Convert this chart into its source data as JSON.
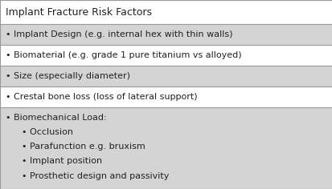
{
  "title": "Implant Fracture Risk Factors",
  "title_bg": "#ffffff",
  "border_color": "#999999",
  "text_color": "#222222",
  "title_fontsize": 9.0,
  "row_fontsize": 8.0,
  "fig_width": 4.14,
  "fig_height": 2.36,
  "dpi": 100,
  "rows": [
    {
      "text": "• Implant Design (e.g. internal hex with thin walls)",
      "bg": "#d4d4d4"
    },
    {
      "text": "• Biomaterial (e.g. grade 1 pure titanium vs alloyed)",
      "bg": "#ffffff"
    },
    {
      "text": "• Size (especially diameter)",
      "bg": "#d4d4d4"
    },
    {
      "text": "• Crestal bone loss (loss of lateral support)",
      "bg": "#ffffff"
    }
  ],
  "last_row_bg": "#d4d4d4",
  "last_row_lines": [
    {
      "text": "• Biomechanical Load:",
      "indent": 0.018
    },
    {
      "text": "• Occlusion",
      "indent": 0.065
    },
    {
      "text": "• Parafunction e.g. bruxism",
      "indent": 0.065
    },
    {
      "text": "• Implant position",
      "indent": 0.065
    },
    {
      "text": "• Prosthetic design and passivity",
      "indent": 0.065
    }
  ]
}
